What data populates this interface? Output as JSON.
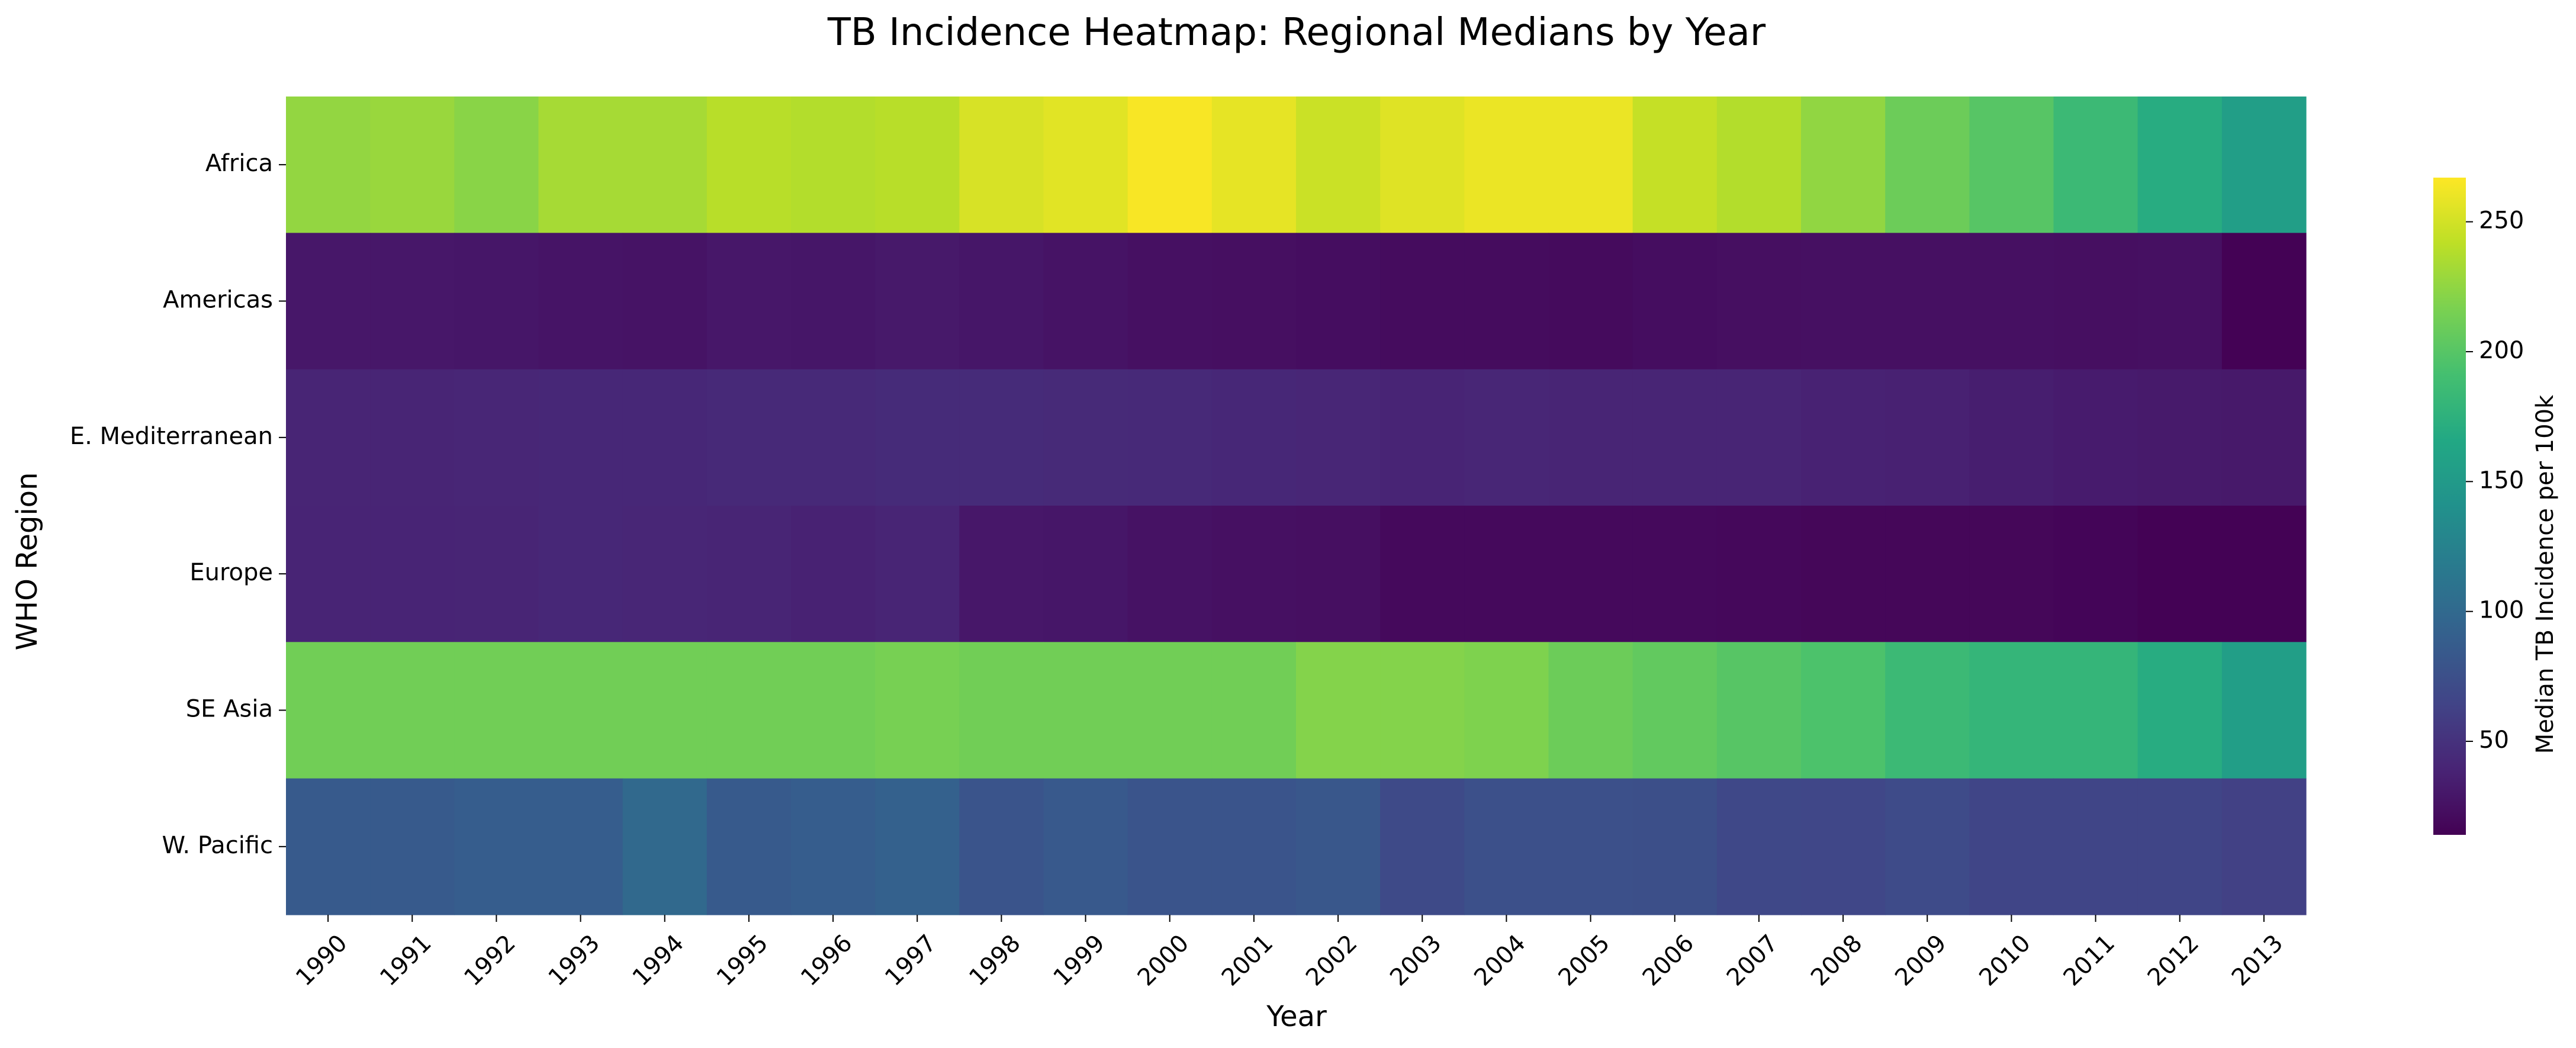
{
  "chart_data": {
    "type": "heatmap",
    "title": "TB Incidence Heatmap: Regional Medians by Year",
    "xlabel": "Year",
    "ylabel": "WHO Region",
    "colorbar_label": "Median TB Incidence per 100k",
    "colormap": "viridis",
    "color_range": [
      14,
      267
    ],
    "colorbar_ticks": [
      50,
      100,
      150,
      200,
      250
    ],
    "x": [
      "1990",
      "1991",
      "1992",
      "1993",
      "1994",
      "1995",
      "1996",
      "1997",
      "1998",
      "1999",
      "2000",
      "2001",
      "2002",
      "2003",
      "2004",
      "2005",
      "2006",
      "2007",
      "2008",
      "2009",
      "2010",
      "2011",
      "2012",
      "2013"
    ],
    "y": [
      "Africa",
      "Americas",
      "E. Mediterranean",
      "Europe",
      "SE Asia",
      "W. Pacific"
    ],
    "values": [
      [
        226,
        228,
        222,
        233,
        233,
        240,
        238,
        240,
        252,
        256,
        265,
        258,
        247,
        255,
        260,
        260,
        245,
        238,
        225,
        210,
        200,
        185,
        170,
        155
      ],
      [
        30,
        30,
        29,
        28,
        27,
        30,
        29,
        31,
        29,
        27,
        25,
        24,
        23,
        22,
        22,
        21,
        23,
        24,
        25,
        25,
        25,
        24,
        25,
        15
      ],
      [
        40,
        40,
        41,
        42,
        42,
        43,
        43,
        45,
        45,
        44,
        43,
        42,
        41,
        39,
        41,
        40,
        40,
        40,
        38,
        37,
        35,
        33,
        32,
        31
      ],
      [
        39,
        39,
        40,
        42,
        41,
        40,
        38,
        40,
        30,
        29,
        26,
        25,
        24,
        20,
        20,
        20,
        20,
        19,
        18,
        18,
        18,
        17,
        15,
        15
      ],
      [
        212,
        212,
        212,
        212,
        212,
        212,
        212,
        215,
        212,
        212,
        212,
        212,
        220,
        220,
        218,
        210,
        205,
        200,
        195,
        185,
        180,
        180,
        170,
        155
      ],
      [
        85,
        85,
        88,
        88,
        100,
        85,
        88,
        92,
        80,
        84,
        80,
        80,
        82,
        70,
        76,
        76,
        75,
        68,
        67,
        71,
        66,
        66,
        66,
        62
      ]
    ]
  }
}
